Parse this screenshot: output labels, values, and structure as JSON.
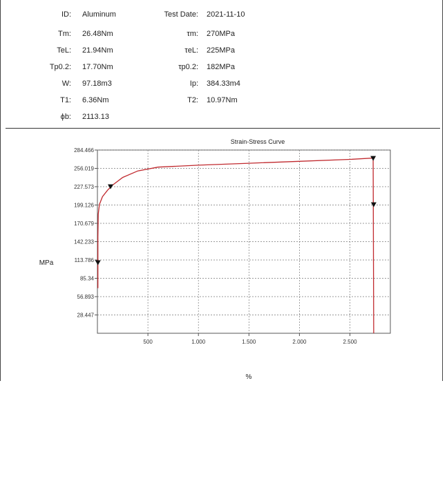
{
  "report": {
    "rows": [
      {
        "left_label": "ID:",
        "left_value": "Aluminum",
        "right_label": "Test Date:",
        "right_value": "2021-11-10"
      },
      {
        "left_label": "Tm:",
        "left_value": "26.48Nm",
        "right_label": "τm:",
        "right_value": "270MPa"
      },
      {
        "left_label": "TeL:",
        "left_value": "21.94Nm",
        "right_label": "τeL:",
        "right_value": "225MPa"
      },
      {
        "left_label": "Tp0.2:",
        "left_value": "17.70Nm",
        "right_label": "τp0.2:",
        "right_value": "182MPa"
      },
      {
        "left_label": "W:",
        "left_value": "97.18m3",
        "right_label": "Ip:",
        "right_value": "384.33m4"
      },
      {
        "left_label": "T1:",
        "left_value": "6.36Nm",
        "right_label": "T2:",
        "right_value": "10.97Nm"
      },
      {
        "left_label": "ϕb:",
        "left_value": "2113.13",
        "right_label": "",
        "right_value": ""
      }
    ]
  },
  "chart_data": {
    "type": "line",
    "title": "Strain-Stress Curve",
    "xlabel": "%",
    "ylabel": "MPa",
    "xlim": [
      0,
      2900
    ],
    "ylim": [
      0,
      284.466
    ],
    "x_ticks": [
      {
        "value": 500,
        "label": "500"
      },
      {
        "value": 1000,
        "label": "1.000"
      },
      {
        "value": 1500,
        "label": "1.500"
      },
      {
        "value": 2000,
        "label": "2.000"
      },
      {
        "value": 2500,
        "label": "2.500"
      }
    ],
    "y_ticks": [
      {
        "value": 28.447,
        "label": "28.447"
      },
      {
        "value": 56.893,
        "label": "56.893"
      },
      {
        "value": 85.34,
        "label": "85.34"
      },
      {
        "value": 113.786,
        "label": "113.786"
      },
      {
        "value": 142.233,
        "label": "142.233"
      },
      {
        "value": 170.679,
        "label": "170.679"
      },
      {
        "value": 199.126,
        "label": "199.126"
      },
      {
        "value": 227.573,
        "label": "227.573"
      },
      {
        "value": 256.019,
        "label": "256.019"
      },
      {
        "value": 284.466,
        "label": "284.466"
      }
    ],
    "grid": true,
    "line_color": "#c0282d",
    "series": [
      {
        "values": [
          {
            "x": 5,
            "y": 70
          },
          {
            "x": 5,
            "y": 150
          },
          {
            "x": 8,
            "y": 185
          },
          {
            "x": 20,
            "y": 200
          },
          {
            "x": 50,
            "y": 212
          },
          {
            "x": 100,
            "y": 222
          },
          {
            "x": 150,
            "y": 230
          },
          {
            "x": 250,
            "y": 242
          },
          {
            "x": 400,
            "y": 252
          },
          {
            "x": 600,
            "y": 258
          },
          {
            "x": 1000,
            "y": 261
          },
          {
            "x": 1500,
            "y": 264
          },
          {
            "x": 2000,
            "y": 267
          },
          {
            "x": 2500,
            "y": 270
          },
          {
            "x": 2730,
            "y": 272
          },
          {
            "x": 2735,
            "y": 0
          }
        ]
      }
    ],
    "markers": [
      {
        "x": 5,
        "y": 110,
        "direction": "down"
      },
      {
        "x": 130,
        "y": 228,
        "direction": "down"
      },
      {
        "x": 2730,
        "y": 272,
        "direction": "down"
      },
      {
        "x": 2735,
        "y": 200,
        "direction": "down"
      }
    ]
  }
}
